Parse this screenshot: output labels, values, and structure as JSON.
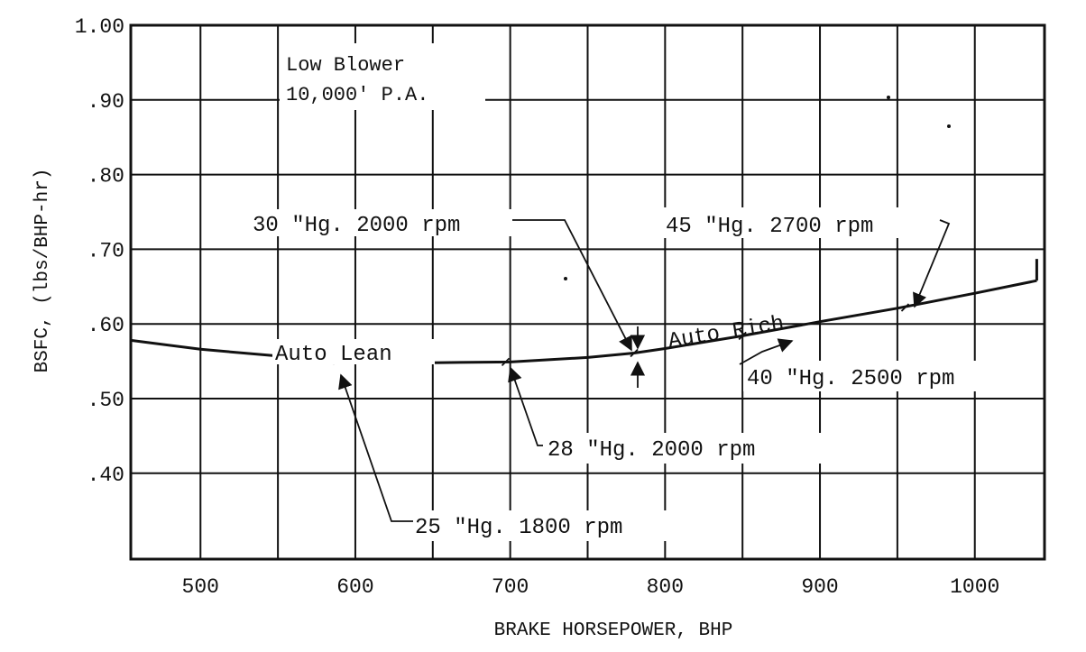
{
  "chart_data": {
    "type": "line",
    "title": "",
    "xlabel": "BRAKE HORSEPOWER, BHP",
    "ylabel": "BSFC, (lbs/BHP-hr)",
    "xlim": [
      455,
      1045
    ],
    "ylim": [
      0.285,
      1.0
    ],
    "x_ticks": [
      500,
      600,
      700,
      800,
      900,
      1000
    ],
    "x_tick_labels": [
      "500",
      "600",
      "700",
      "800",
      "900",
      "1000"
    ],
    "y_ticks": [
      1.0,
      0.9,
      0.8,
      0.7,
      0.6,
      0.5,
      0.4
    ],
    "y_tick_labels": [
      "1.00",
      ".90",
      ".80",
      ".70",
      ".60",
      ".50",
      ".40"
    ],
    "grid": true,
    "legend": "none",
    "series": [
      {
        "x": [
          455,
          500,
          550,
          600,
          650,
          700,
          750,
          780,
          800,
          850,
          900,
          950,
          1000,
          1040
        ],
        "y": [
          0.578,
          0.566,
          0.557,
          0.551,
          0.548,
          0.549,
          0.555,
          0.561,
          0.567,
          0.584,
          0.603,
          0.621,
          0.641,
          0.658
        ]
      }
    ],
    "annotations": {
      "condition_line1": "Low Blower",
      "condition_line2": "10,000' P.A.",
      "label_auto_lean": "Auto Lean",
      "label_auto_rich": "Auto Rich",
      "point_25": "25 \"Hg. 1800 rpm",
      "point_28": "28 \"Hg. 2000 rpm",
      "point_30": "30 \"Hg. 2000 rpm",
      "point_40": "40 \"Hg. 2500 rpm",
      "point_45": "45 \"Hg. 2700 rpm"
    },
    "annotation_points": {
      "point_25": [
        588,
        0.551
      ],
      "point_28": [
        697,
        0.549
      ],
      "point_30": [
        780,
        0.561
      ],
      "point_40": [
        850,
        0.584
      ],
      "point_45": [
        955,
        0.622
      ]
    }
  }
}
